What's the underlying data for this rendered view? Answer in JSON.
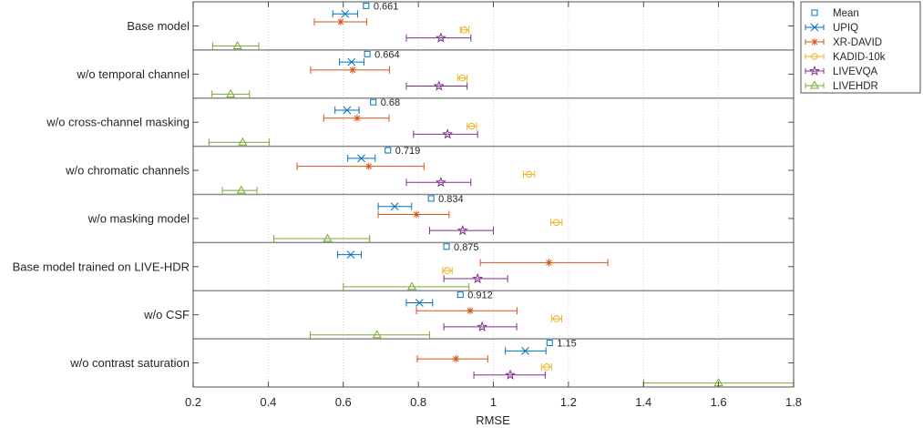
{
  "chart_data": {
    "type": "scatter",
    "title": "",
    "xlabel": "RMSE",
    "ylabel": "",
    "xlim": [
      0.2,
      1.8
    ],
    "x_ticks": [
      "0.2",
      "0.4",
      "0.6",
      "0.8",
      "1",
      "1.2",
      "1.4",
      "1.6",
      "1.8"
    ],
    "grid": "vertical dotted",
    "legend_position": "outside top-right",
    "categories": [
      "Base model",
      "w/o temporal channel",
      "w/o cross-channel masking",
      "w/o chromatic channels",
      "w/o masking model",
      "Base model trained on LIVE-HDR",
      "w/o CSF",
      "w/o contrast saturation"
    ],
    "mean": {
      "name": "Mean",
      "color": "#0072BD",
      "marker": "square",
      "values": [
        0.661,
        0.664,
        0.68,
        0.719,
        0.834,
        0.875,
        0.912,
        1.15
      ],
      "labels": [
        "0.661",
        "0.664",
        "0.68",
        "0.719",
        "0.834",
        "0.875",
        "0.912",
        "1.15"
      ]
    },
    "series": [
      {
        "name": "UPIQ",
        "color": "#0072BD",
        "marker": "x",
        "values": [
          0.605,
          0.622,
          0.61,
          0.648,
          0.737,
          0.62,
          0.803,
          1.085
        ],
        "lower": [
          0.572,
          0.59,
          0.578,
          0.612,
          0.693,
          0.585,
          0.768,
          1.032
        ],
        "upper": [
          0.638,
          0.655,
          0.642,
          0.685,
          0.782,
          0.648,
          0.838,
          1.14
        ]
      },
      {
        "name": "XR-DAVID",
        "color": "#D95319",
        "marker": "asterisk",
        "values": [
          0.593,
          0.625,
          0.637,
          0.668,
          0.795,
          1.148,
          0.938,
          0.9
        ],
        "lower": [
          0.523,
          0.513,
          0.548,
          0.477,
          0.693,
          0.965,
          0.795,
          0.797
        ],
        "upper": [
          0.662,
          0.723,
          0.722,
          0.815,
          0.882,
          1.305,
          1.063,
          0.985
        ]
      },
      {
        "name": "KADID-10k",
        "color": "#EDB120",
        "marker": "circle",
        "values": [
          0.922,
          0.917,
          0.942,
          1.095,
          1.168,
          0.877,
          1.168,
          1.142
        ],
        "lower": [
          0.912,
          0.905,
          0.93,
          1.08,
          1.153,
          0.865,
          1.155,
          1.128
        ],
        "upper": [
          0.935,
          0.93,
          0.955,
          1.11,
          1.183,
          0.89,
          1.182,
          1.155
        ]
      },
      {
        "name": "LIVEVQA",
        "color": "#7E2F8E",
        "marker": "pentagram",
        "values": [
          0.86,
          0.855,
          0.878,
          0.86,
          0.918,
          0.958,
          0.97,
          1.045
        ],
        "lower": [
          0.768,
          0.768,
          0.787,
          0.768,
          0.83,
          0.868,
          0.868,
          0.948
        ],
        "upper": [
          0.94,
          0.93,
          0.958,
          0.94,
          1.0,
          1.038,
          1.062,
          1.138
        ]
      },
      {
        "name": "LIVEHDR",
        "color": "#77AC30",
        "marker": "triangle",
        "values": [
          0.318,
          0.3,
          0.332,
          0.328,
          0.558,
          0.783,
          0.69,
          1.6
        ],
        "lower": [
          0.252,
          0.25,
          0.242,
          0.278,
          0.415,
          0.6,
          0.512,
          1.4
        ],
        "upper": [
          0.375,
          0.35,
          0.403,
          0.37,
          0.67,
          0.935,
          0.83,
          1.8
        ]
      }
    ]
  }
}
